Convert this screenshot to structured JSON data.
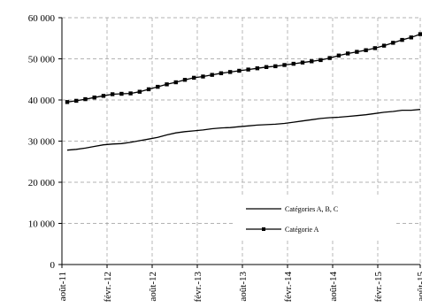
{
  "chart_data": {
    "type": "line",
    "x_ticks": [
      "août-11",
      "févr.-12",
      "août-12",
      "févr.-13",
      "août-13",
      "févr.-14",
      "août-14",
      "févr.-15",
      "août-15"
    ],
    "x_tick_labels_shown": [
      "août-11",
      "févr.-12",
      "août-12",
      "févr.-13",
      "août-13",
      "févr.-14",
      "août-14",
      "févr.-15",
      "août-15"
    ],
    "ylim": [
      0,
      60000
    ],
    "y_ticks": [
      0,
      10000,
      20000,
      30000,
      40000,
      50000,
      60000
    ],
    "y_tick_labels": [
      "0",
      "10 000",
      "20 000",
      "30 000",
      "40 000",
      "50 000",
      "60 000"
    ],
    "grid": "vertical and horizontal, dashed",
    "legend_position": "lower-right inside plot",
    "series": [
      {
        "name": "Catégories A, B, C",
        "marker": "none",
        "color": "#000000",
        "values": [
          27800,
          28000,
          28300,
          28700,
          29100,
          29300,
          29400,
          29700,
          30100,
          30500,
          30900,
          31500,
          32000,
          32300,
          32500,
          32700,
          33000,
          33200,
          33300,
          33500,
          33700,
          33900,
          34000,
          34100,
          34300,
          34600,
          34900,
          35200,
          35500,
          35700,
          35800,
          36000,
          36200,
          36400,
          36700,
          37000,
          37200,
          37500,
          37500,
          37700
        ]
      },
      {
        "name": "Catégorie A",
        "marker": "square",
        "color": "#000000",
        "values": [
          39500,
          39800,
          40200,
          40600,
          41000,
          41400,
          41500,
          41600,
          42000,
          42600,
          43200,
          43800,
          44300,
          44900,
          45400,
          45700,
          46100,
          46500,
          46800,
          47100,
          47400,
          47700,
          48000,
          48200,
          48500,
          48800,
          49100,
          49400,
          49700,
          50200,
          50800,
          51300,
          51700,
          52100,
          52600,
          53200,
          53900,
          54600,
          55200,
          56000
        ]
      }
    ]
  }
}
